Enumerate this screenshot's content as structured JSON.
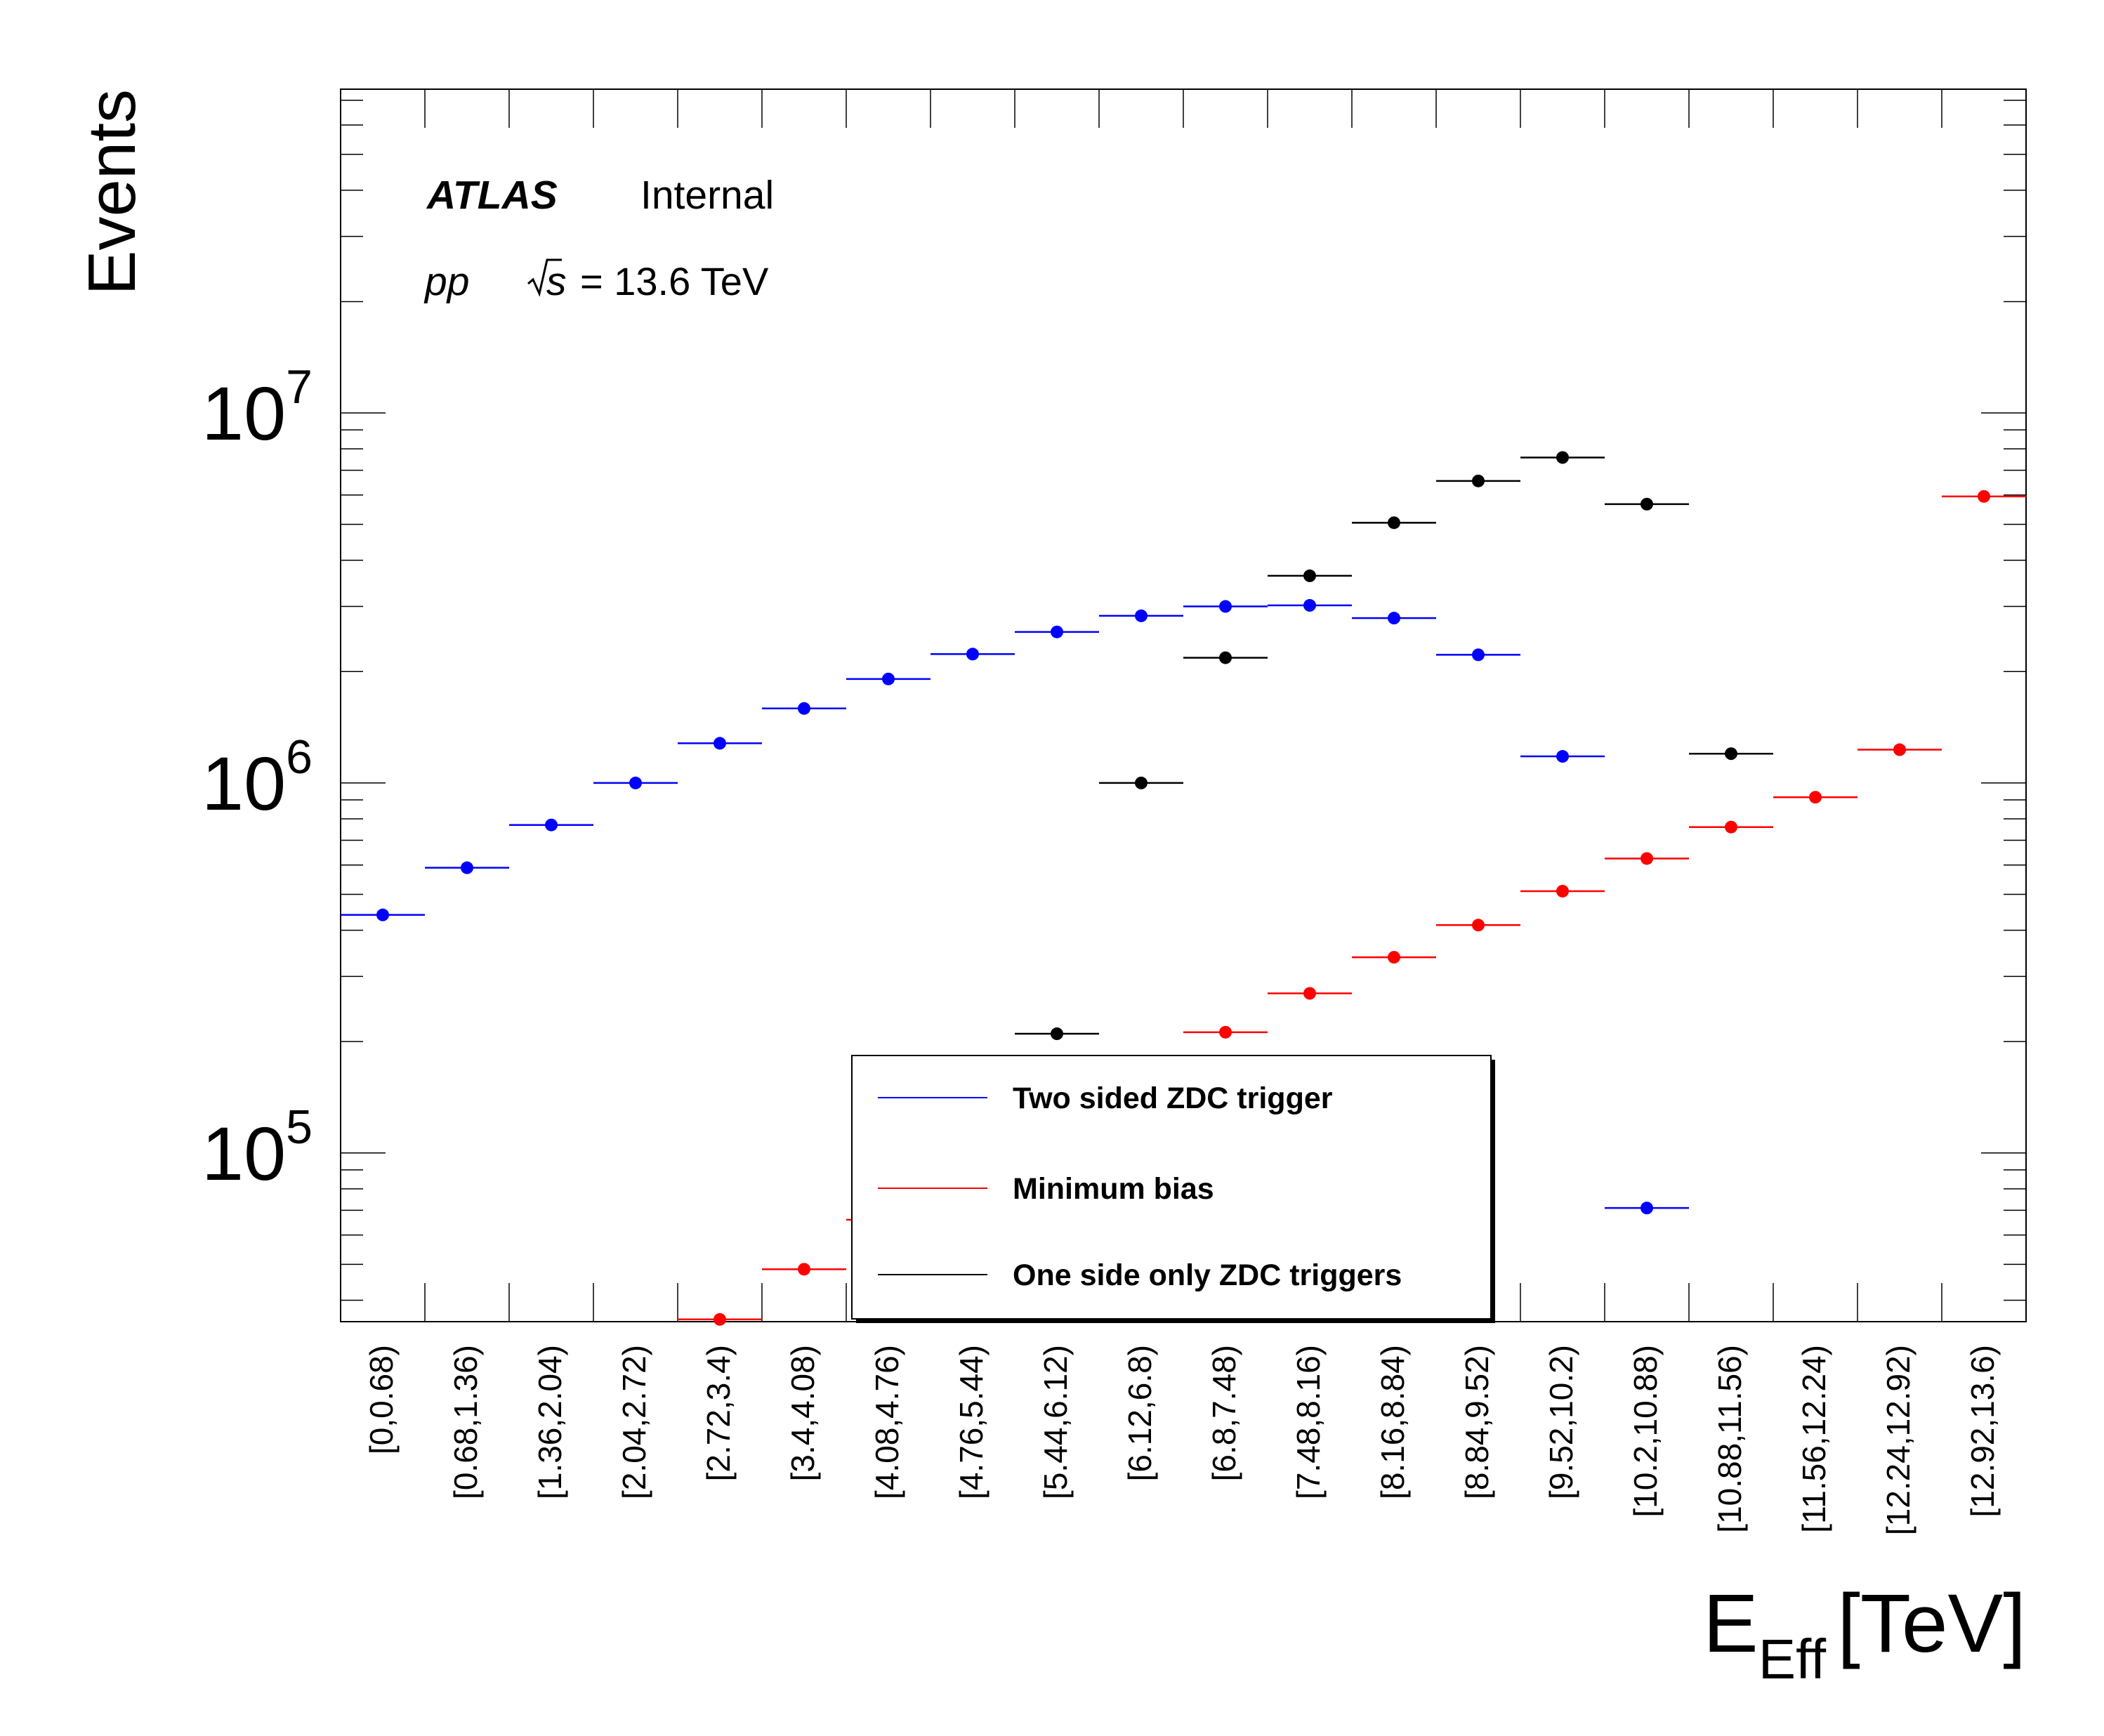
{
  "chart_data": {
    "type": "scatter",
    "yscale": "log",
    "ylabel": "Events",
    "xlabel": "E_Eff [TeV]",
    "xlabel_main": "E",
    "xlabel_sub": "Eff",
    "xlabel_unit": "[TeV]",
    "ylim": [
      35000,
      75000000
    ],
    "y_ticks": [
      {
        "value": 100000,
        "base": "10",
        "exp": "5"
      },
      {
        "value": 1000000,
        "base": "10",
        "exp": "6"
      },
      {
        "value": 10000000,
        "base": "10",
        "exp": "7"
      }
    ],
    "categories": [
      "[0,0.68)",
      "[0.68,1.36)",
      "[1.36,2.04)",
      "[2.04,2.72)",
      "[2.72,3.4)",
      "[3.4,4.08)",
      "[4.08,4.76)",
      "[4.76,5.44)",
      "[5.44,6.12)",
      "[6.12,6.8)",
      "[6.8,7.48)",
      "[7.48,8.16)",
      "[8.16,8.84)",
      "[8.84,9.52)",
      "[9.52,10.2)",
      "[10.2,10.88)",
      "[10.88,11.56)",
      "[11.56,12.24)",
      "[12.24,12.92)",
      "[12.92,13.6)"
    ],
    "series": [
      {
        "name": "Two sided ZDC trigger",
        "color": "#0000ff",
        "values": [
          440000,
          590000,
          770000,
          1000000,
          1280000,
          1590000,
          1910000,
          2230000,
          2560000,
          2830000,
          3000000,
          3020000,
          2790000,
          2220000,
          1180000,
          71000,
          null,
          null,
          null,
          null
        ]
      },
      {
        "name": "Minimum bias",
        "color": "#ff0000",
        "values": [
          null,
          null,
          null,
          null,
          35500,
          48500,
          66000,
          null,
          null,
          null,
          212000,
          270000,
          338000,
          413000,
          510000,
          625000,
          760000,
          915000,
          1230000,
          5950000
        ]
      },
      {
        "name": "One side only ZDC triggers",
        "color": "#000000",
        "values": [
          null,
          null,
          null,
          null,
          null,
          null,
          null,
          null,
          210000,
          1000000,
          2180000,
          3630000,
          5050000,
          6550000,
          7580000,
          5670000,
          1200000,
          null,
          null,
          null
        ]
      }
    ],
    "legend": {
      "placement": "bottom-center"
    },
    "grid": false
  },
  "annotations": {
    "atlas": "ATLAS",
    "internal": "Internal",
    "pp": "pp",
    "s": "s",
    "energy": "= 13.6 TeV"
  }
}
